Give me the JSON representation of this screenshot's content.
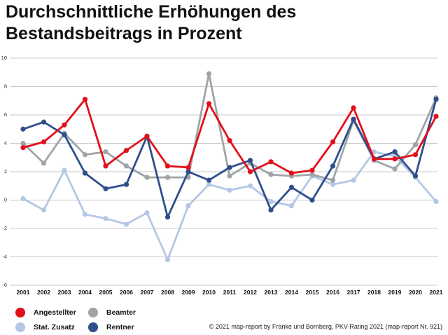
{
  "title": "Durchschnittliche Erhöhungen des Bestandsbeitrags in Prozent",
  "chart_data": {
    "type": "line",
    "title": "Durchschnittliche Erhöhungen des Bestandsbeitrags in Prozent",
    "xlabel": "",
    "ylabel": "",
    "categories": [
      "2001",
      "2002",
      "2003",
      "2004",
      "2005",
      "2006",
      "2007",
      "2008",
      "2009",
      "2010",
      "2011",
      "2012",
      "2013",
      "2014",
      "2015",
      "2016",
      "2017",
      "2018",
      "2019",
      "2020",
      "2021"
    ],
    "ylim": [
      -6,
      10
    ],
    "yticks": [
      "10",
      "8",
      "6",
      "4",
      "2",
      "0",
      "-2",
      "-4",
      "-6"
    ],
    "grid": true,
    "legend_position": "bottom-left",
    "series": [
      {
        "name": "Stat. Zusatz",
        "color": "#b4c7e4",
        "values": [
          0.1,
          -0.7,
          2.1,
          -1.0,
          -1.3,
          -1.7,
          -0.9,
          -4.2,
          -0.4,
          1.1,
          0.7,
          1.0,
          -0.1,
          -0.4,
          1.7,
          1.1,
          1.4,
          3.4,
          3.1,
          1.6,
          -0.1
        ]
      },
      {
        "name": "Beamter",
        "color": "#9fa4a8",
        "values": [
          4.0,
          2.6,
          4.7,
          3.2,
          3.4,
          2.4,
          1.6,
          1.6,
          1.6,
          8.9,
          1.7,
          2.6,
          1.8,
          1.7,
          1.8,
          1.4,
          5.6,
          2.8,
          2.2,
          3.9,
          7.2
        ]
      },
      {
        "name": "Rentner",
        "color": "#2e4e8c",
        "values": [
          5.0,
          5.5,
          4.6,
          1.9,
          0.8,
          1.1,
          4.5,
          -1.2,
          2.0,
          1.4,
          2.3,
          2.8,
          -0.7,
          0.9,
          0.0,
          2.4,
          5.7,
          2.9,
          3.4,
          1.7,
          7.1
        ]
      },
      {
        "name": "Angestellter",
        "color": "#e2101b",
        "values": [
          3.7,
          4.1,
          5.3,
          7.1,
          2.4,
          3.5,
          4.5,
          2.4,
          2.3,
          6.8,
          4.2,
          2.0,
          2.7,
          1.9,
          2.1,
          4.1,
          6.5,
          2.9,
          2.9,
          3.2,
          5.9
        ]
      }
    ]
  },
  "legend": {
    "angestellter": {
      "label": "Angestellter",
      "color": "#e2101b"
    },
    "beamter": {
      "label": "Beamter",
      "color": "#9fa4a8"
    },
    "stat_zusatz": {
      "label": "Stat. Zusatz",
      "color": "#b4c7e4"
    },
    "rentner": {
      "label": "Rentner",
      "color": "#2e4e8c"
    }
  },
  "source": "© 2021 map-report by Franke und Bornberg, PKV-Rating 2021 (map-report Nr. 921)"
}
